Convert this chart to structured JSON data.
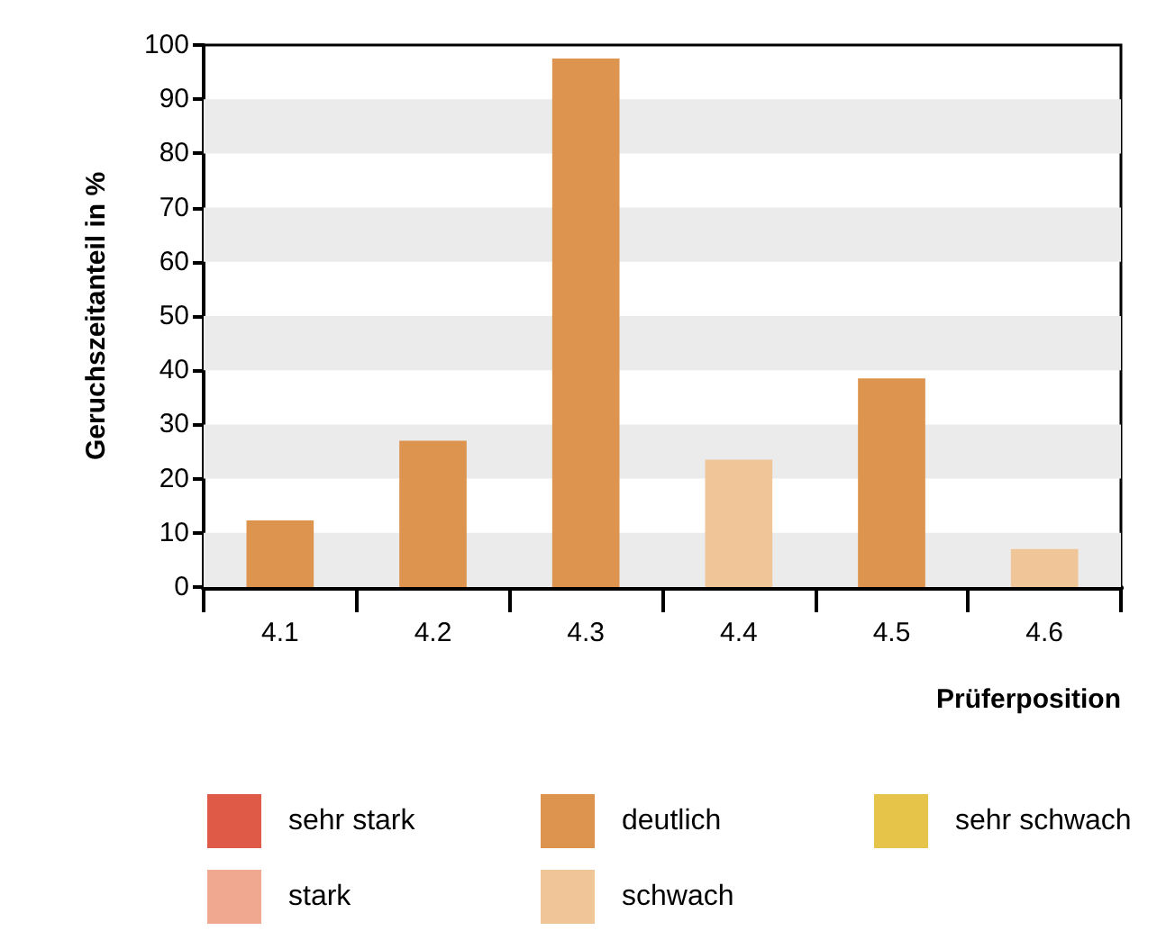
{
  "chart_data": {
    "type": "bar",
    "xlabel": "Prüferposition",
    "ylabel": "Geruchszeitanteil in %",
    "categories": [
      "4.1",
      "4.2",
      "4.3",
      "4.4",
      "4.5",
      "4.6"
    ],
    "stacked": true,
    "series": [
      {
        "name": "sehr stark",
        "color": "#e05a48",
        "values": [
          null,
          null,
          null,
          null,
          null,
          null
        ]
      },
      {
        "name": "stark",
        "color": "#f0a890",
        "values": [
          null,
          null,
          null,
          null,
          null,
          null
        ]
      },
      {
        "name": "deutlich",
        "color": "#dc944e",
        "values": [
          12.3,
          27,
          97.5,
          null,
          38.5,
          null
        ]
      },
      {
        "name": "schwach",
        "color": "#f0c598",
        "values": [
          null,
          null,
          null,
          23.5,
          null,
          7
        ]
      },
      {
        "name": "sehr schwach",
        "color": "#e6c44a",
        "values": [
          null,
          null,
          null,
          null,
          null,
          null
        ]
      }
    ],
    "ylim": [
      0,
      100
    ],
    "yticks": [
      0,
      10,
      20,
      30,
      40,
      50,
      60,
      70,
      80,
      90,
      100
    ],
    "grid": false,
    "legend": "bottom",
    "bands": [
      {
        "axis": "y",
        "from": 0,
        "to": 10,
        "color": "#ebebeb"
      },
      {
        "axis": "y",
        "from": 20,
        "to": 30,
        "color": "#ebebeb"
      },
      {
        "axis": "y",
        "from": 40,
        "to": 50,
        "color": "#ebebeb"
      },
      {
        "axis": "y",
        "from": 60,
        "to": 70,
        "color": "#ebebeb"
      },
      {
        "axis": "y",
        "from": 80,
        "to": 90,
        "color": "#ebebeb"
      }
    ]
  }
}
